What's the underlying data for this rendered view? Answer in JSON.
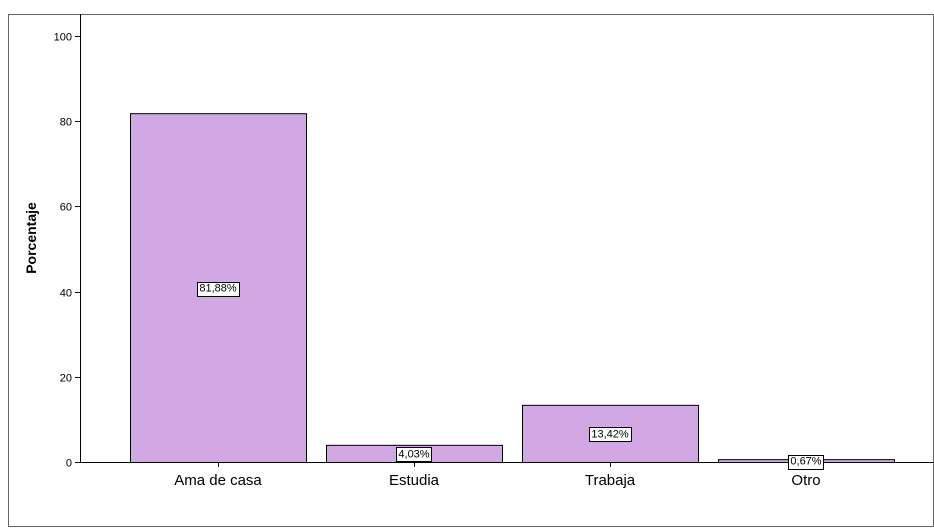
{
  "chart_data": {
    "type": "bar",
    "categories": [
      "Ama de casa",
      "Estudia",
      "Trabaja",
      "Otro"
    ],
    "values": [
      81.88,
      4.03,
      13.42,
      0.67
    ],
    "data_labels": [
      "81,88%",
      "4,03%",
      "13,42%",
      "0,67%"
    ],
    "ylabel": "Porcentaje",
    "xlabel": "",
    "ylim": [
      0,
      100
    ],
    "yticks": [
      0,
      20,
      40,
      60,
      80,
      100
    ],
    "ytick_labels": [
      "0",
      "20",
      "40",
      "60",
      "80",
      "100"
    ],
    "grid": false,
    "colors": {
      "bar_fill": "#d1a8e4",
      "bar_stroke": "#000000",
      "label_box_fill": "#ffffff"
    }
  }
}
